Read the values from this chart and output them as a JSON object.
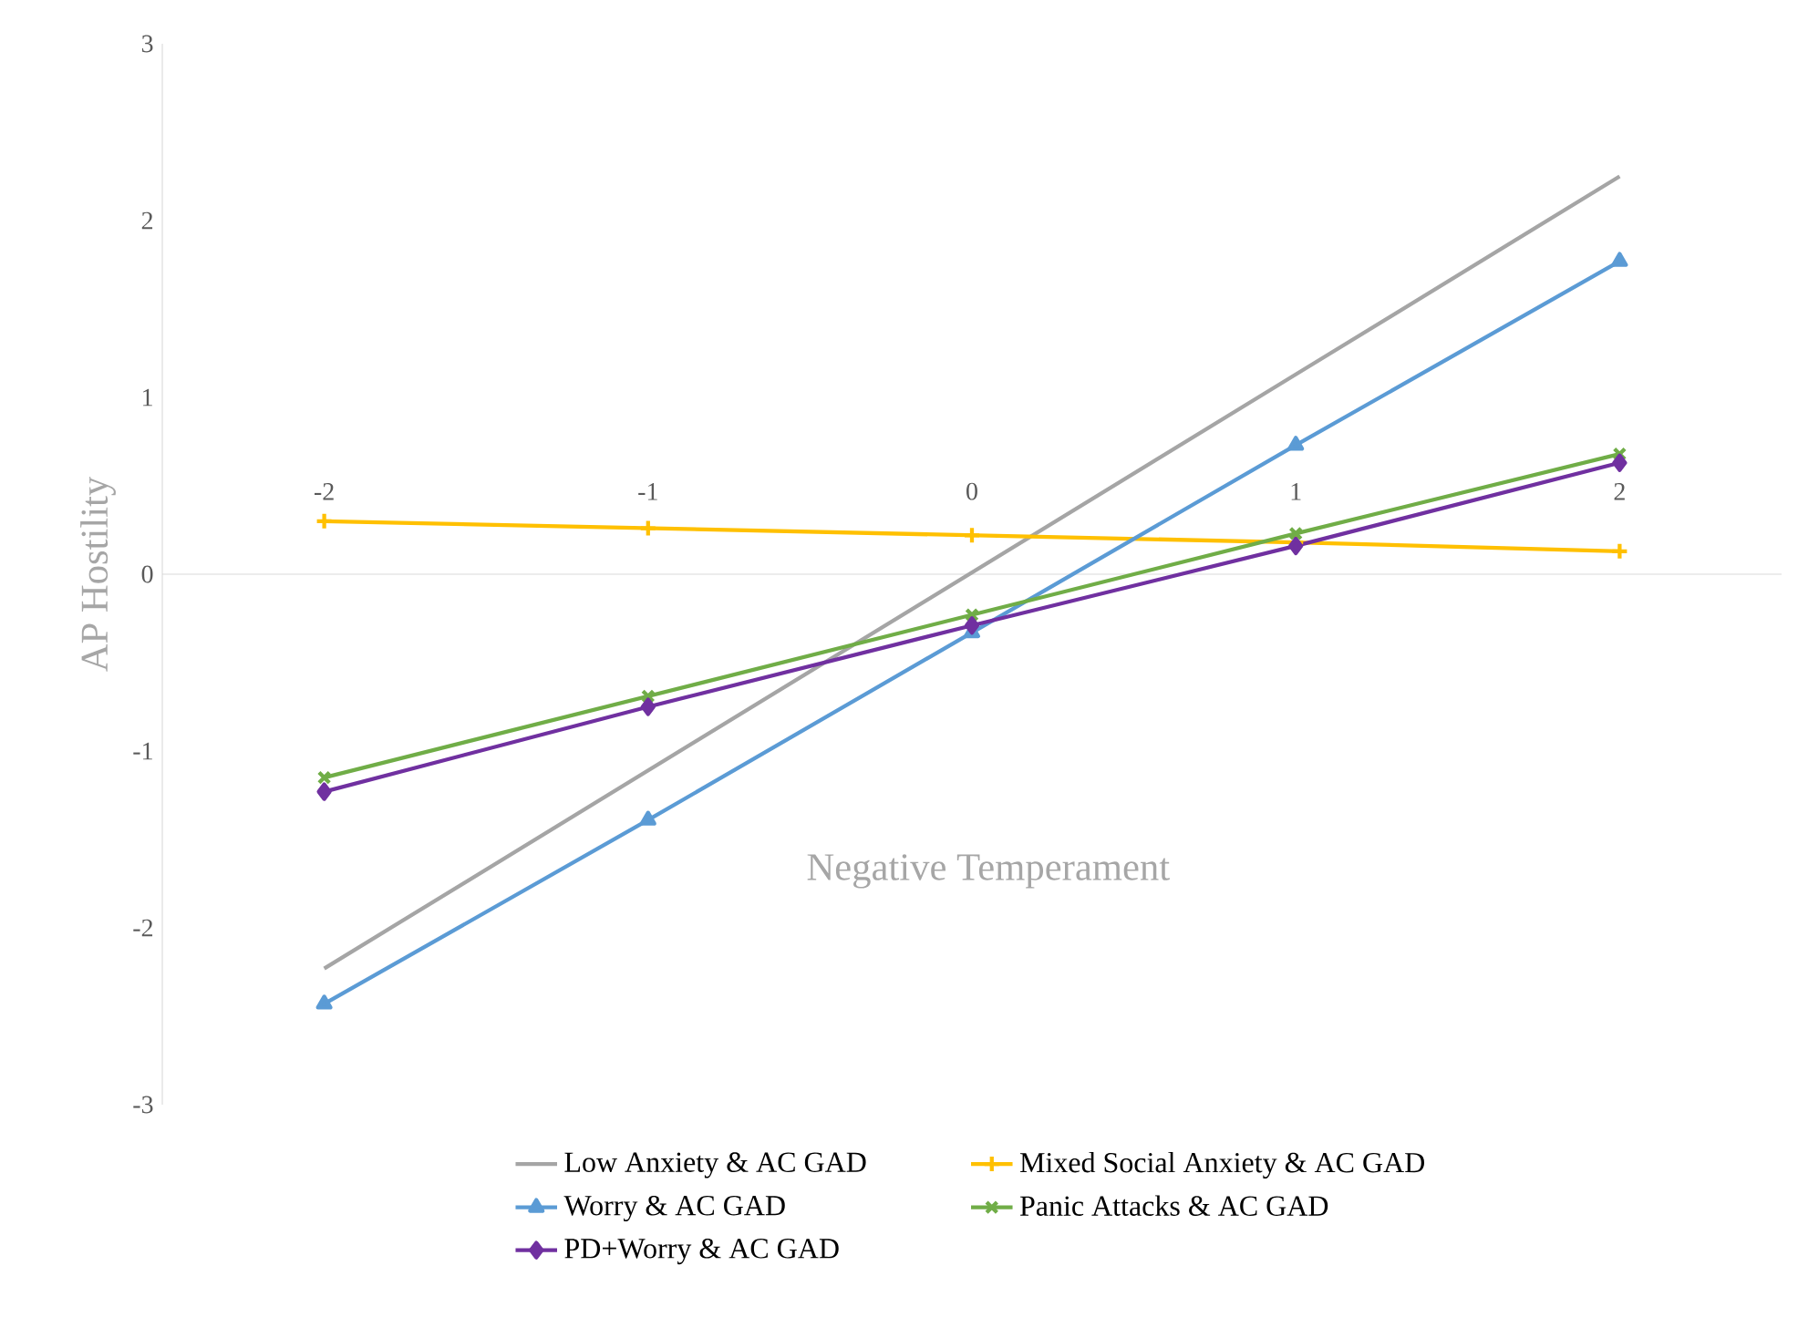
{
  "chart_data": {
    "type": "line",
    "xlabel": "Negative Temperament",
    "ylabel": "AP Hostility",
    "x": [
      -2,
      -1,
      0,
      1,
      2
    ],
    "xlim": [
      -2.5,
      2.5
    ],
    "xticks": [
      -2,
      -1,
      0,
      1,
      2
    ],
    "ylim": [
      -3,
      3
    ],
    "yticks": [
      -3,
      -2,
      -1,
      0,
      1,
      2,
      3
    ],
    "legend": "bottom",
    "series": [
      {
        "name": "Low Anxiety & AC GAD",
        "color": "#a5a5a5",
        "marker": "none",
        "values": [
          -2.23,
          -1.11,
          0.01,
          1.13,
          2.25
        ]
      },
      {
        "name": "Mixed Social Anxiety & AC GAD",
        "color": "#ffc000",
        "marker": "plus",
        "values": [
          0.3,
          0.26,
          0.22,
          0.18,
          0.13
        ]
      },
      {
        "name": "Worry & AC GAD",
        "color": "#5b9bd5",
        "marker": "triangle",
        "values": [
          -2.43,
          -1.39,
          -0.33,
          0.73,
          1.77
        ]
      },
      {
        "name": "Panic Attacks & AC GAD",
        "color": "#70ad47",
        "marker": "cross",
        "values": [
          -1.15,
          -0.69,
          -0.23,
          0.23,
          0.68
        ]
      },
      {
        "name": "PD+Worry & AC GAD",
        "color": "#7030a0",
        "marker": "diamond",
        "values": [
          -1.23,
          -0.75,
          -0.29,
          0.16,
          0.63
        ]
      }
    ]
  }
}
